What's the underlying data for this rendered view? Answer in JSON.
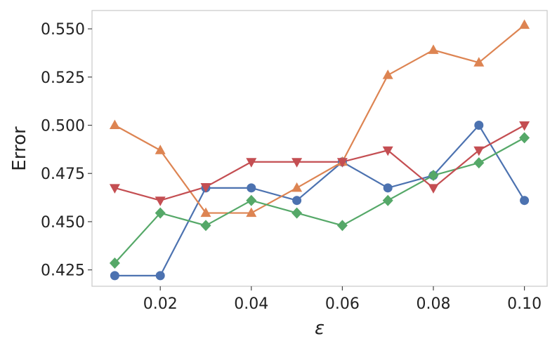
{
  "chart_data": {
    "type": "line",
    "title": "",
    "xlabel": "ε",
    "ylabel": "Error",
    "xlim": [
      0.005,
      0.105
    ],
    "ylim": [
      0.4165,
      0.5595
    ],
    "xticks": [
      0.02,
      0.04,
      0.06,
      0.08,
      0.1
    ],
    "xtick_labels": [
      "0.02",
      "0.04",
      "0.06",
      "0.08",
      "0.10"
    ],
    "yticks": [
      0.425,
      0.45,
      0.475,
      0.5,
      0.525,
      0.55
    ],
    "ytick_labels": [
      "0.425",
      "0.450",
      "0.475",
      "0.500",
      "0.525",
      "0.550"
    ],
    "grid": false,
    "legend": "none",
    "x": [
      0.01,
      0.02,
      0.03,
      0.04,
      0.05,
      0.06,
      0.07,
      0.08,
      0.09,
      0.1
    ],
    "series": [
      {
        "marker": "circle",
        "color": "#4c72b0",
        "values": [
          0.422,
          0.422,
          0.4675,
          0.4675,
          0.461,
          0.481,
          0.4675,
          0.474,
          0.5,
          0.461
        ]
      },
      {
        "marker": "triangle-up",
        "color": "#dd8452",
        "values": [
          0.5,
          0.487,
          0.4545,
          0.4545,
          0.4675,
          0.481,
          0.526,
          0.539,
          0.5325,
          0.552
        ]
      },
      {
        "marker": "diamond",
        "color": "#55a868",
        "values": [
          0.4285,
          0.4545,
          0.448,
          0.461,
          0.4545,
          0.448,
          0.461,
          0.474,
          0.4805,
          0.4935
        ]
      },
      {
        "marker": "triangle-down",
        "color": "#c44e52",
        "values": [
          0.4675,
          0.461,
          0.468,
          0.481,
          0.481,
          0.481,
          0.487,
          0.4675,
          0.487,
          0.5
        ]
      }
    ]
  }
}
